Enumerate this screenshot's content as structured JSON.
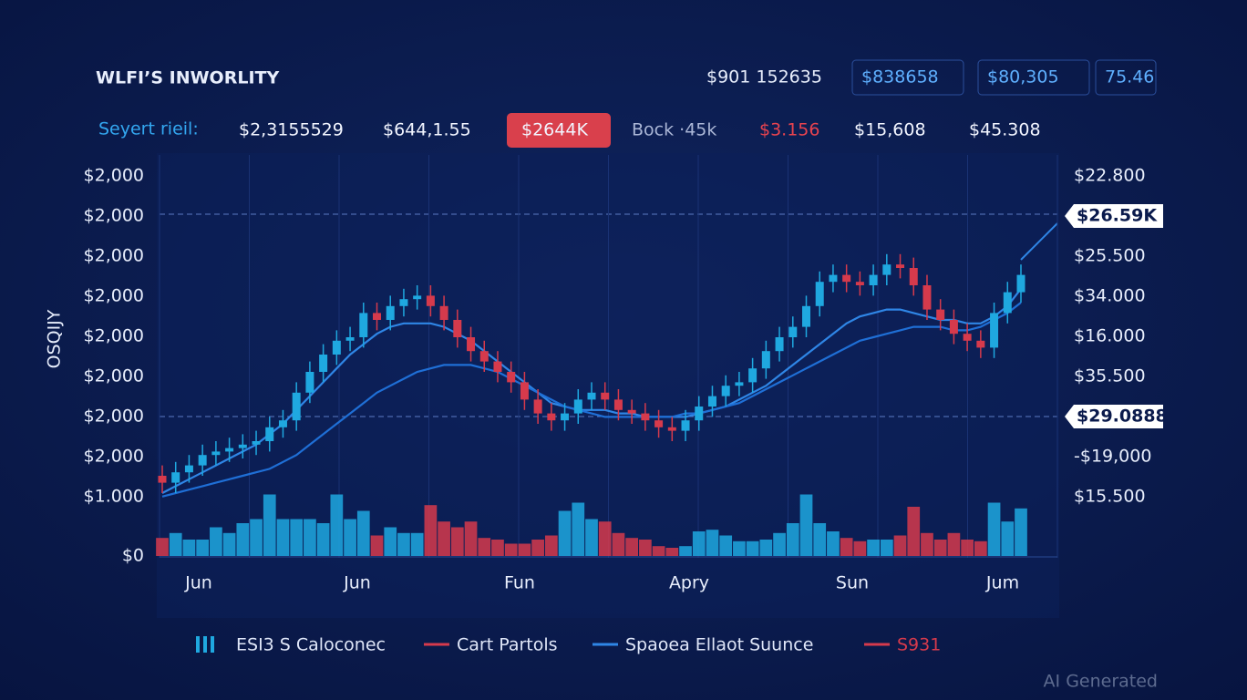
{
  "chart_data": {
    "type": "candlestick",
    "title": "WLFI’S INWORLITY",
    "stats": [
      "$901 152635",
      "$838658",
      "$80,305",
      "75.46"
    ],
    "ticker_label": "Seyert rieil:",
    "ticker": [
      "$2,3155529",
      "$644,1.55",
      "$2644K",
      "Bock ·45k",
      "$3.156",
      "$15,608",
      "$45.308"
    ],
    "y_axis_label": "OSQIJY",
    "left_axis_labels": [
      "$2,000",
      "$2,000",
      "$2,000",
      "$2,000",
      "$2,000",
      "$2,000",
      "$2,000",
      "$2,000",
      "$1.000",
      "$0"
    ],
    "right_axis_labels": [
      "$22.800",
      "$26.59K",
      "$25.500",
      "$34.000",
      "$16.000",
      "$35.500",
      "$29.0888",
      "-$19,000",
      "$15.500"
    ],
    "x_labels": [
      "Jun",
      "Jun",
      "Fun",
      "Apry",
      "Sun",
      "Jum"
    ],
    "ylim": [
      0,
      100
    ],
    "volume_lim": [
      0,
      100
    ],
    "up_color": "#1fa8e0",
    "down_color": "#d63a4c",
    "open": [
      10,
      8,
      11,
      13,
      16,
      17,
      18,
      19,
      20,
      24,
      26,
      34,
      40,
      45,
      49,
      50,
      57,
      55,
      59,
      61,
      62,
      59,
      55,
      50,
      46,
      43,
      40,
      37,
      32,
      28,
      26,
      28,
      32,
      34,
      32,
      29,
      28,
      26,
      24,
      23,
      26,
      30,
      33,
      36,
      37,
      41,
      46,
      50,
      53,
      59,
      66,
      68,
      66,
      65,
      68,
      71,
      70,
      65,
      58,
      55,
      51,
      49,
      47,
      57,
      63
    ],
    "close": [
      8,
      11,
      13,
      16,
      17,
      18,
      19,
      20,
      24,
      26,
      34,
      40,
      45,
      49,
      50,
      57,
      55,
      59,
      61,
      62,
      59,
      55,
      50,
      46,
      43,
      40,
      37,
      32,
      28,
      26,
      28,
      32,
      34,
      32,
      29,
      28,
      26,
      24,
      23,
      26,
      30,
      33,
      36,
      37,
      41,
      46,
      50,
      53,
      59,
      66,
      68,
      66,
      65,
      68,
      71,
      70,
      65,
      58,
      55,
      51,
      49,
      47,
      57,
      63,
      68
    ],
    "high": [
      13,
      14,
      16,
      19,
      20,
      21,
      22,
      23,
      27,
      29,
      37,
      43,
      48,
      52,
      53,
      60,
      60,
      62,
      64,
      65,
      65,
      62,
      58,
      53,
      49,
      46,
      43,
      40,
      35,
      31,
      31,
      35,
      37,
      37,
      35,
      32,
      31,
      29,
      27,
      29,
      33,
      36,
      39,
      40,
      44,
      49,
      53,
      56,
      62,
      69,
      71,
      71,
      69,
      71,
      74,
      74,
      73,
      68,
      61,
      58,
      54,
      52,
      60,
      66,
      71
    ],
    "low": [
      5,
      5,
      8,
      10,
      13,
      14,
      15,
      16,
      17,
      21,
      23,
      31,
      37,
      42,
      46,
      47,
      52,
      52,
      56,
      58,
      56,
      52,
      47,
      43,
      40,
      37,
      34,
      29,
      25,
      23,
      23,
      25,
      29,
      29,
      26,
      25,
      23,
      21,
      20,
      20,
      23,
      27,
      30,
      33,
      34,
      38,
      43,
      47,
      50,
      56,
      63,
      63,
      62,
      62,
      65,
      67,
      62,
      55,
      52,
      48,
      46,
      44,
      44,
      54,
      60
    ],
    "volume": [
      22,
      28,
      20,
      20,
      35,
      28,
      40,
      45,
      75,
      45,
      45,
      45,
      40,
      75,
      45,
      55,
      25,
      35,
      28,
      28,
      62,
      42,
      35,
      42,
      22,
      20,
      15,
      15,
      20,
      25,
      55,
      65,
      45,
      42,
      28,
      22,
      20,
      12,
      10,
      12,
      30,
      32,
      25,
      18,
      18,
      20,
      28,
      40,
      75,
      40,
      30,
      22,
      18,
      20,
      20,
      25,
      60,
      28,
      20,
      28,
      20,
      18,
      65,
      42,
      58
    ],
    "series": [
      {
        "color": "#2f86e6",
        "values": [
          5,
          7,
          9,
          11,
          13,
          15,
          17,
          19,
          22,
          25,
          29,
          33,
          37,
          41,
          45,
          48,
          51,
          53,
          54,
          54,
          54,
          53,
          51,
          49,
          46,
          43,
          40,
          37,
          34,
          31,
          30,
          29,
          29,
          29,
          28,
          28,
          27,
          27,
          27,
          27,
          28,
          29,
          30,
          32,
          34,
          36,
          39,
          42,
          45,
          48,
          51,
          54,
          56,
          57,
          58,
          58,
          57,
          56,
          55,
          55,
          54,
          54,
          56,
          59,
          64
        ]
      },
      {
        "color": "#1f6fd6",
        "values": [
          4,
          5,
          6,
          7,
          8,
          9,
          10,
          11,
          12,
          14,
          16,
          19,
          22,
          25,
          28,
          31,
          34,
          36,
          38,
          40,
          41,
          42,
          42,
          42,
          41,
          40,
          38,
          36,
          34,
          32,
          30,
          29,
          28,
          27,
          27,
          27,
          27,
          27,
          27,
          28,
          28,
          29,
          30,
          31,
          33,
          35,
          37,
          39,
          41,
          43,
          45,
          47,
          49,
          50,
          51,
          52,
          53,
          53,
          53,
          52,
          52,
          53,
          55,
          57,
          60
        ]
      }
    ],
    "legend": [
      {
        "name": "ESI3 S Caloconec",
        "color": "#1fa8e0"
      },
      {
        "name": "Cart Partols",
        "color": "#d63a4c"
      },
      {
        "name": "Spaoea Ellaot Suunce",
        "color": "#2f86e6"
      },
      {
        "name": "S931",
        "color": "#d63a4c"
      }
    ],
    "watermark": "AI Generated"
  }
}
